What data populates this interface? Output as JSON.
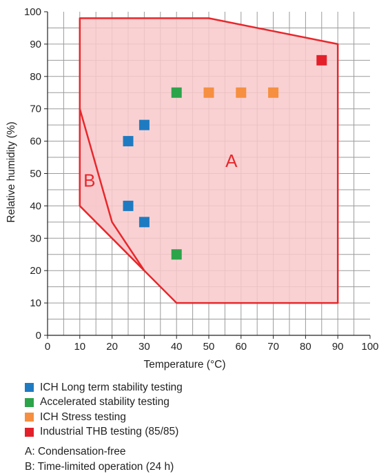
{
  "chart_data": {
    "type": "scatter",
    "xlabel": "Temperature (°C)",
    "ylabel": "Relative humidity (%)",
    "xlim": [
      0,
      100
    ],
    "ylim": [
      0,
      100
    ],
    "x_ticks": [
      0,
      10,
      20,
      30,
      40,
      50,
      60,
      70,
      80,
      90,
      100
    ],
    "y_ticks": [
      0,
      10,
      20,
      30,
      40,
      50,
      60,
      70,
      80,
      90,
      100
    ],
    "grid": true,
    "minor_grid_step": 5,
    "legend_position": "bottom",
    "region_color": "#e8272b",
    "region_fill": "#f8c9cb",
    "regions": [
      {
        "label": "A",
        "label_at": [
          57,
          52
        ],
        "polygon": [
          [
            10,
            98
          ],
          [
            50,
            98
          ],
          [
            90,
            90
          ],
          [
            90,
            10
          ],
          [
            40,
            10
          ],
          [
            30,
            20
          ],
          [
            10,
            40
          ]
        ]
      },
      {
        "label": "B",
        "label_at": [
          13,
          46
        ],
        "polygon": [
          [
            10,
            70
          ],
          [
            20,
            35
          ],
          [
            30,
            20
          ],
          [
            10,
            40
          ]
        ]
      }
    ],
    "series": [
      {
        "name": "ICH Long term stability testing",
        "color": "#1e7bc1",
        "points": [
          [
            25,
            60
          ],
          [
            30,
            65
          ],
          [
            25,
            40
          ],
          [
            30,
            35
          ]
        ]
      },
      {
        "name": "Accelerated stability testing",
        "color": "#2ca44a",
        "points": [
          [
            40,
            75
          ],
          [
            40,
            25
          ]
        ]
      },
      {
        "name": "ICH Stress testing",
        "color": "#f68f3f",
        "points": [
          [
            50,
            75
          ],
          [
            60,
            75
          ],
          [
            70,
            75
          ]
        ]
      },
      {
        "name": "Industrial THB testing (85/85)",
        "color": "#e3202a",
        "points": [
          [
            85,
            85
          ]
        ]
      }
    ]
  },
  "notes": [
    "A: Condensation-free",
    "B: Time-limited operation (24 h)"
  ]
}
